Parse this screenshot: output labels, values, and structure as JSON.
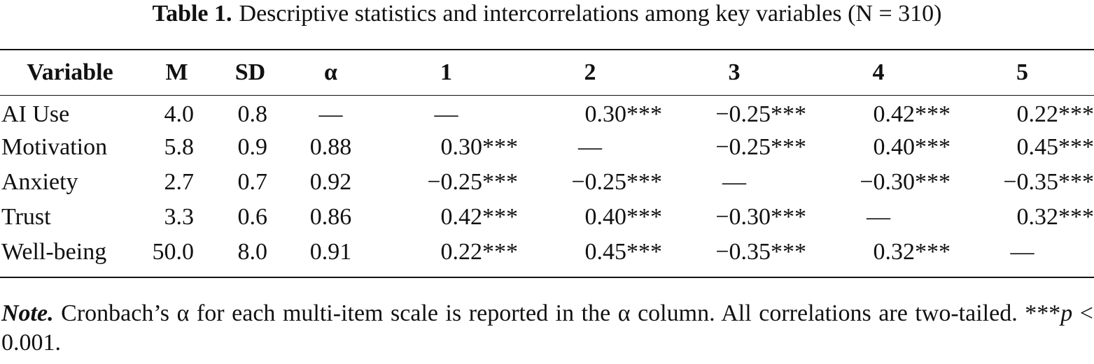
{
  "caption": {
    "label": "Table 1.",
    "text": "Descriptive statistics and intercorrelations among key variables (N = 310)"
  },
  "table": {
    "headers": [
      "Variable",
      "M",
      "SD",
      "α",
      "1",
      "2",
      "3",
      "4",
      "5"
    ],
    "rows": [
      [
        "AI Use",
        "4.0",
        "0.8",
        "—",
        "—",
        "0.30***",
        "−0.25***",
        "0.42***",
        "0.22***"
      ],
      [
        "Motivation",
        "5.8",
        "0.9",
        "0.88",
        "0.30***",
        "—",
        "−0.25***",
        "0.40***",
        "0.45***"
      ],
      [
        "Anxiety",
        "2.7",
        "0.7",
        "0.92",
        "−0.25***",
        "−0.25***",
        "—",
        "−0.30***",
        "−0.35***"
      ],
      [
        "Trust",
        "3.3",
        "0.6",
        "0.86",
        "0.42***",
        "0.40***",
        "−0.30***",
        "—",
        "0.32***"
      ],
      [
        "Well-being",
        "50.0",
        "8.0",
        "0.91",
        "0.22***",
        "0.45***",
        "−0.35***",
        "0.32***",
        "—"
      ]
    ]
  },
  "note": {
    "label": "Note.",
    "text": " Cronbach’s α for each multi-item scale is reported in the α column. All correlations are two-tailed. ***",
    "p_symbol": "p",
    "p_text": " < 0.001."
  }
}
